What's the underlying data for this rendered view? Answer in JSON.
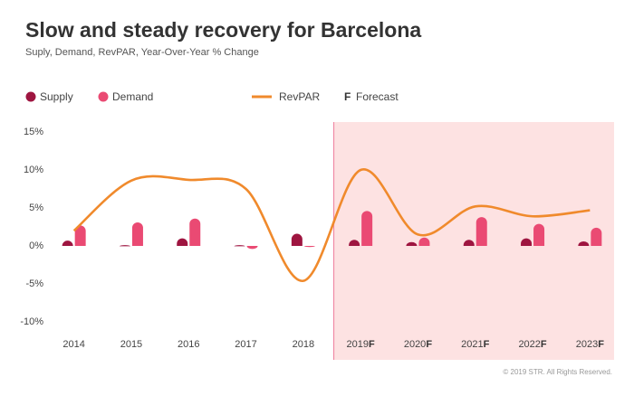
{
  "chart_data": {
    "type": "bar-line",
    "title": "Slow and steady recovery for Barcelona",
    "subtitle": "Suply, Demand, RevPAR, Year-Over-Year % Change",
    "categories": [
      "2014",
      "2015",
      "2016",
      "2017",
      "2018",
      "2019",
      "2020",
      "2021",
      "2022",
      "2023"
    ],
    "series": [
      {
        "name": "Supply",
        "type": "bar",
        "color": "#9e1540",
        "values": [
          0.7,
          0.1,
          1.0,
          0.1,
          1.6,
          0.8,
          0.5,
          0.8,
          1.0,
          0.6
        ]
      },
      {
        "name": "Demand",
        "type": "bar",
        "color": "#ea4a73",
        "values": [
          2.7,
          3.1,
          3.6,
          -0.4,
          -0.1,
          4.6,
          1.1,
          3.8,
          2.9,
          2.4
        ]
      },
      {
        "name": "RevPAR",
        "type": "line",
        "color": "#f08a2c",
        "values": [
          2.0,
          8.6,
          8.7,
          7.5,
          -4.6,
          10.0,
          1.5,
          5.2,
          3.9,
          4.7
        ]
      }
    ],
    "forecast": {
      "marker": "F",
      "label": "Forecast",
      "start": "2019",
      "color": "#fde2e2"
    },
    "ylim": [
      -10,
      15
    ],
    "yticks": [
      {
        "value": -10,
        "label": "-10%"
      },
      {
        "value": -5,
        "label": "-5%"
      },
      {
        "value": 0,
        "label": "0%"
      },
      {
        "value": 5,
        "label": "5%"
      },
      {
        "value": 10,
        "label": "10%"
      },
      {
        "value": 15,
        "label": "15%"
      }
    ],
    "grid": false,
    "footer": "© 2019 STR. All Rights Reserved."
  }
}
